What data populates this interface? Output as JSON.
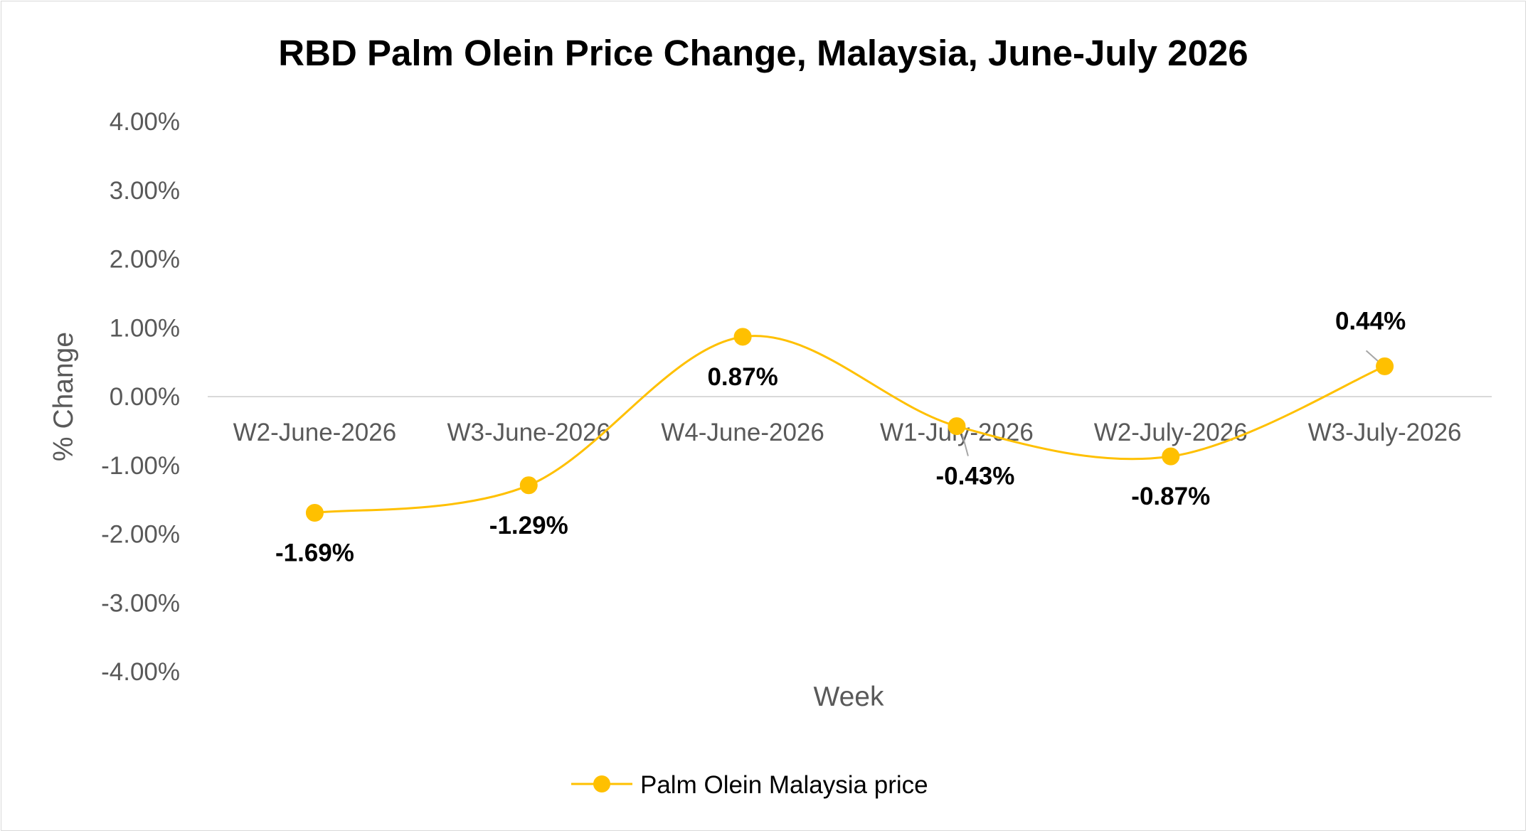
{
  "chart_data": {
    "type": "line",
    "title": "RBD Palm Olein Price Change, Malaysia, June-July 2026",
    "xlabel": "Week",
    "ylabel": "% Change",
    "categories": [
      "W2-June-2026",
      "W3-June-2026",
      "W4-June-2026",
      "W1-July-2026",
      "W2-July-2026",
      "W3-July-2026"
    ],
    "series": [
      {
        "name": "Palm Olein Malaysia price",
        "values": [
          -1.69,
          -1.29,
          0.87,
          -0.43,
          -0.87,
          0.44
        ],
        "data_labels": [
          "-1.69%",
          "-1.29%",
          "0.87%",
          "-0.43%",
          "-0.87%",
          "0.44%"
        ],
        "color": "#FFC000"
      }
    ],
    "ylim": [
      -4,
      4
    ],
    "y_ticks": [
      4,
      3,
      2,
      1,
      0,
      -1,
      -2,
      -3,
      -4
    ],
    "y_tick_labels": [
      "4.00%",
      "3.00%",
      "2.00%",
      "1.00%",
      "0.00%",
      "-1.00%",
      "-2.00%",
      "-3.00%",
      "-4.00%"
    ],
    "smoothed": true,
    "grid": false,
    "legend_position": "bottom"
  }
}
